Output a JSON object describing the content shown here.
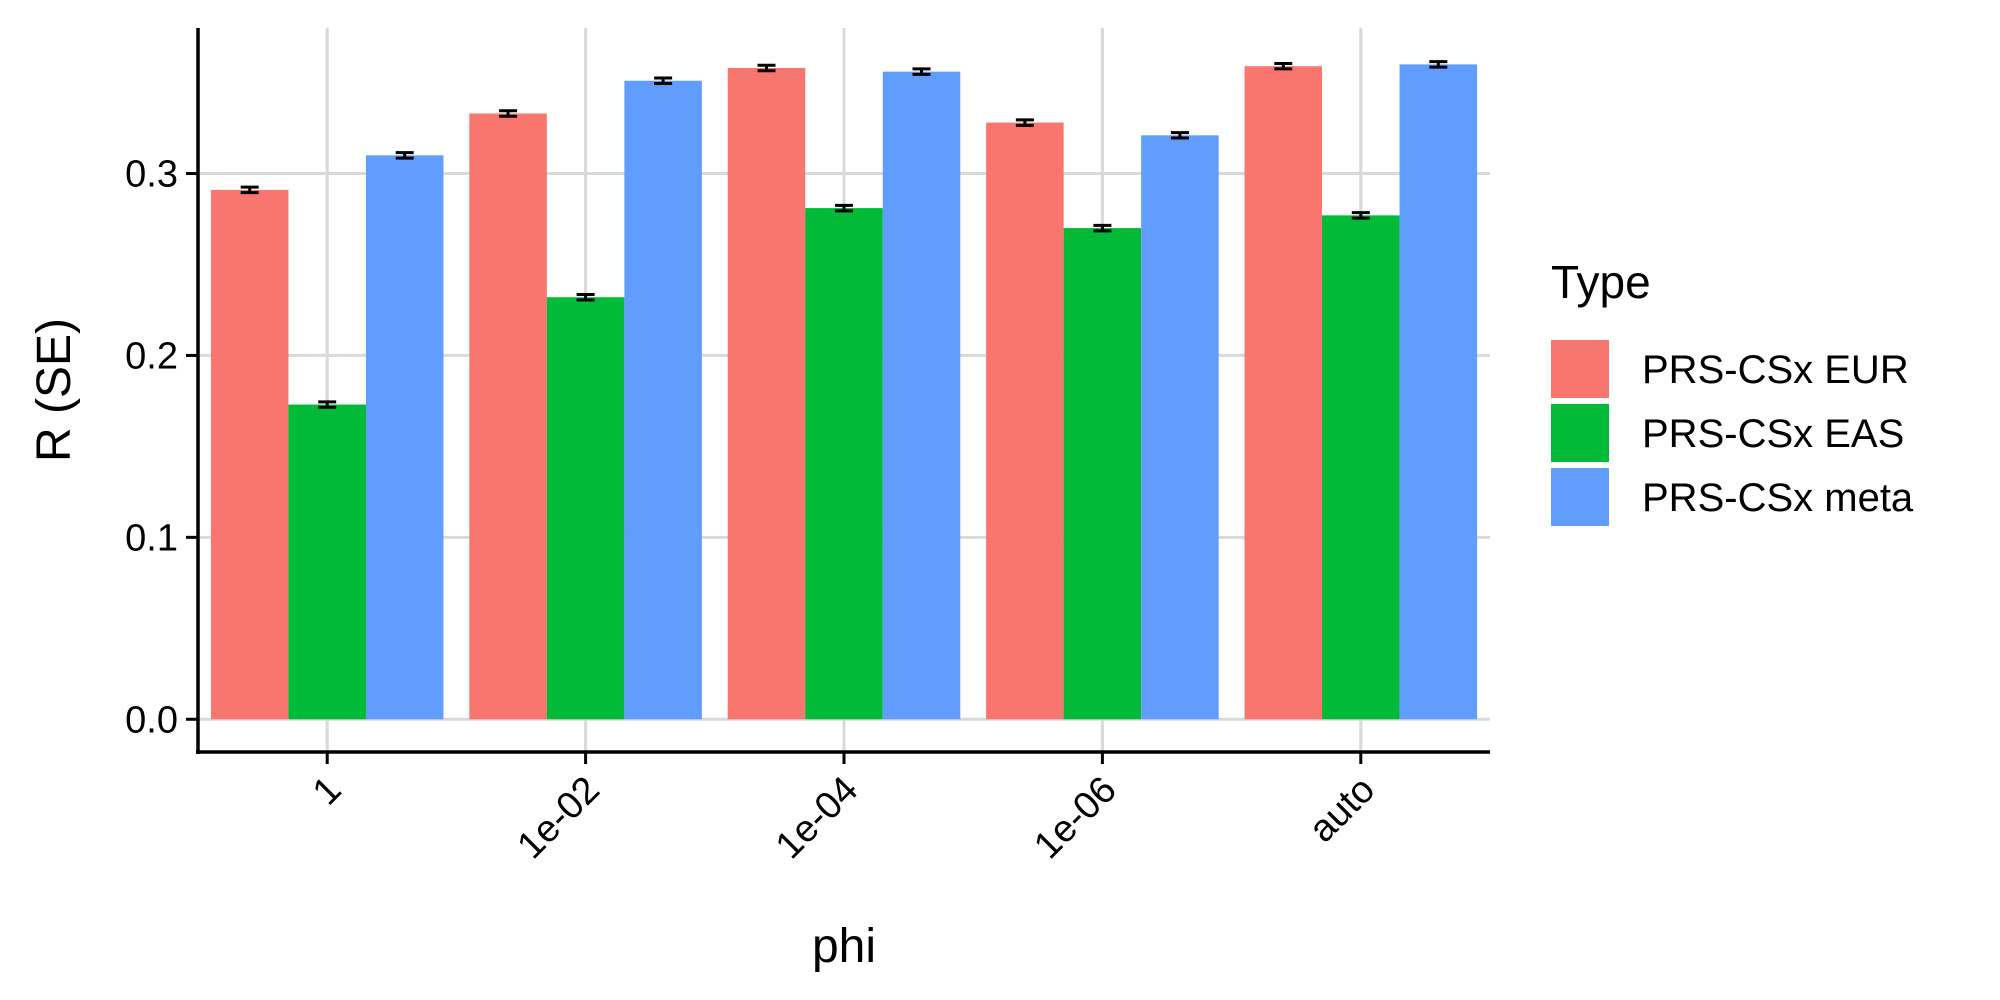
{
  "chart_data": {
    "type": "bar",
    "title": "",
    "xlabel": "phi",
    "ylabel": "R (SE)",
    "categories": [
      "1",
      "1e-02",
      "1e-04",
      "1e-06",
      "auto"
    ],
    "ylim": [
      -0.018,
      0.38
    ],
    "yticks": [
      0.0,
      0.1,
      0.2,
      0.3
    ],
    "ytick_labels": [
      "0.0",
      "0.1",
      "0.2",
      "0.3"
    ],
    "grid": true,
    "legend": {
      "title": "Type",
      "position": "right"
    },
    "series": [
      {
        "name": "PRS-CSx EUR",
        "color": "#F8766D",
        "values": [
          0.291,
          0.333,
          0.358,
          0.328,
          0.359
        ],
        "se": [
          0.0015,
          0.0015,
          0.0015,
          0.0015,
          0.0015
        ]
      },
      {
        "name": "PRS-CSx EAS",
        "color": "#00BA38",
        "values": [
          0.173,
          0.232,
          0.281,
          0.27,
          0.277
        ],
        "se": [
          0.0015,
          0.0015,
          0.0015,
          0.0015,
          0.0015
        ]
      },
      {
        "name": "PRS-CSx meta",
        "color": "#619CFF",
        "values": [
          0.31,
          0.351,
          0.356,
          0.321,
          0.36
        ],
        "se": [
          0.0015,
          0.0015,
          0.0015,
          0.0015,
          0.0015
        ]
      }
    ]
  }
}
